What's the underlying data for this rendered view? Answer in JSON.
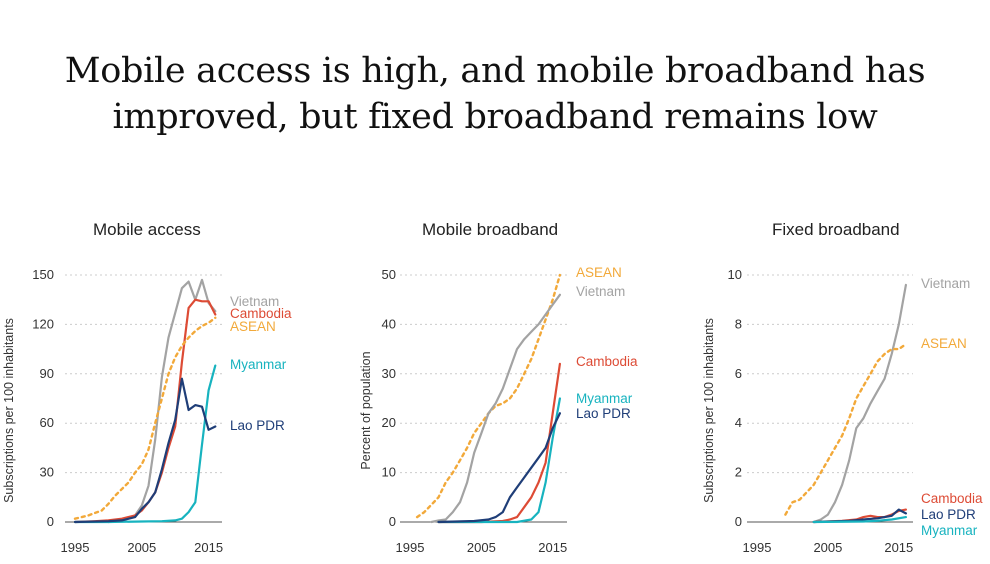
{
  "page_title": {
    "line1": "Mobile access is high, and mobile broadband has",
    "line2": "improved, but fixed broadband remains low"
  },
  "colors": {
    "Vietnam": "#a3a3a3",
    "Cambodia": "#dd4b35",
    "ASEAN": "#f2a93a",
    "Myanmar": "#17b3bf",
    "Lao PDR": "#1f3e78",
    "grid": "#cccccc",
    "axis": "#555555"
  },
  "chart_data": [
    {
      "type": "line",
      "title": "Mobile access",
      "xlabel": "",
      "ylabel": "Subscriptions per 100 inhabitants",
      "xlim": [
        1995,
        2017
      ],
      "ylim": [
        0,
        150
      ],
      "xticks": [
        1995,
        2005,
        2015
      ],
      "yticks": [
        0,
        30,
        60,
        90,
        120,
        150
      ],
      "series": [
        {
          "name": "Vietnam",
          "label": "Vietnam",
          "dashed": false,
          "points": [
            [
              2000,
              0
            ],
            [
              2002,
              1
            ],
            [
              2004,
              4
            ],
            [
              2005,
              10
            ],
            [
              2006,
              22
            ],
            [
              2007,
              50
            ],
            [
              2008,
              88
            ],
            [
              2009,
              112
            ],
            [
              2010,
              127
            ],
            [
              2011,
              142
            ],
            [
              2012,
              146
            ],
            [
              2013,
              135
            ],
            [
              2014,
              147
            ],
            [
              2015,
              133
            ],
            [
              2016,
              128
            ]
          ]
        },
        {
          "name": "Cambodia",
          "label": "Cambodia",
          "dashed": false,
          "points": [
            [
              1995,
              0
            ],
            [
              1998,
              0.5
            ],
            [
              2000,
              1
            ],
            [
              2002,
              2
            ],
            [
              2004,
              4
            ],
            [
              2005,
              7
            ],
            [
              2006,
              12
            ],
            [
              2007,
              18
            ],
            [
              2008,
              30
            ],
            [
              2009,
              45
            ],
            [
              2010,
              58
            ],
            [
              2011,
              97
            ],
            [
              2012,
              130
            ],
            [
              2013,
              135
            ],
            [
              2014,
              134
            ],
            [
              2015,
              134
            ],
            [
              2016,
              126
            ]
          ]
        },
        {
          "name": "ASEAN",
          "label": "ASEAN",
          "dashed": true,
          "points": [
            [
              1995,
              2
            ],
            [
              1997,
              4
            ],
            [
              1999,
              7
            ],
            [
              2000,
              11
            ],
            [
              2001,
              16
            ],
            [
              2002,
              20
            ],
            [
              2003,
              24
            ],
            [
              2004,
              30
            ],
            [
              2005,
              35
            ],
            [
              2006,
              44
            ],
            [
              2007,
              60
            ],
            [
              2008,
              75
            ],
            [
              2009,
              90
            ],
            [
              2010,
              100
            ],
            [
              2011,
              107
            ],
            [
              2012,
              112
            ],
            [
              2013,
              116
            ],
            [
              2014,
              119
            ],
            [
              2015,
              121
            ],
            [
              2016,
              124
            ]
          ]
        },
        {
          "name": "Myanmar",
          "label": "Myanmar",
          "dashed": false,
          "points": [
            [
              1995,
              0
            ],
            [
              2000,
              0
            ],
            [
              2005,
              0.3
            ],
            [
              2008,
              0.5
            ],
            [
              2010,
              1
            ],
            [
              2011,
              2
            ],
            [
              2012,
              6
            ],
            [
              2013,
              12
            ],
            [
              2014,
              47
            ],
            [
              2015,
              80
            ],
            [
              2016,
              95
            ]
          ]
        },
        {
          "name": "Lao PDR",
          "label": "Lao PDR",
          "dashed": false,
          "points": [
            [
              1995,
              0
            ],
            [
              2000,
              0.5
            ],
            [
              2002,
              1
            ],
            [
              2004,
              3
            ],
            [
              2005,
              8
            ],
            [
              2006,
              12
            ],
            [
              2007,
              18
            ],
            [
              2008,
              32
            ],
            [
              2009,
              48
            ],
            [
              2010,
              62
            ],
            [
              2011,
              87
            ],
            [
              2012,
              68
            ],
            [
              2013,
              71
            ],
            [
              2014,
              70
            ],
            [
              2015,
              56
            ],
            [
              2016,
              58
            ]
          ]
        }
      ]
    },
    {
      "type": "line",
      "title": "Mobile broadband",
      "xlabel": "",
      "ylabel": "Percent of population",
      "xlim": [
        1995,
        2017
      ],
      "ylim": [
        0,
        50
      ],
      "xticks": [
        1995,
        2005,
        2015
      ],
      "yticks": [
        0,
        10,
        20,
        30,
        40,
        50
      ],
      "series": [
        {
          "name": "ASEAN",
          "label": "ASEAN",
          "dashed": true,
          "points": [
            [
              1996,
              1
            ],
            [
              1997,
              2
            ],
            [
              1998,
              3.5
            ],
            [
              1999,
              5
            ],
            [
              2000,
              8
            ],
            [
              2001,
              10
            ],
            [
              2002,
              12.5
            ],
            [
              2003,
              15
            ],
            [
              2004,
              18
            ],
            [
              2005,
              20
            ],
            [
              2006,
              22
            ],
            [
              2007,
              23.5
            ],
            [
              2008,
              24
            ],
            [
              2009,
              25
            ],
            [
              2010,
              27
            ],
            [
              2011,
              30
            ],
            [
              2012,
              33
            ],
            [
              2013,
              37
            ],
            [
              2014,
              41
            ],
            [
              2015,
              45
            ],
            [
              2016,
              50
            ]
          ]
        },
        {
          "name": "Vietnam",
          "label": "Vietnam",
          "dashed": false,
          "points": [
            [
              1998,
              0
            ],
            [
              1999,
              0.3
            ],
            [
              2000,
              0.5
            ],
            [
              2001,
              2
            ],
            [
              2002,
              4
            ],
            [
              2003,
              8
            ],
            [
              2004,
              14
            ],
            [
              2005,
              18
            ],
            [
              2006,
              22
            ],
            [
              2007,
              24
            ],
            [
              2008,
              27
            ],
            [
              2009,
              31
            ],
            [
              2010,
              35
            ],
            [
              2011,
              37
            ],
            [
              2012,
              38.5
            ],
            [
              2013,
              40
            ],
            [
              2014,
              42
            ],
            [
              2015,
              44
            ],
            [
              2016,
              46
            ]
          ]
        },
        {
          "name": "Cambodia",
          "label": "Cambodia",
          "dashed": false,
          "points": [
            [
              1999,
              0
            ],
            [
              2005,
              0
            ],
            [
              2008,
              0.2
            ],
            [
              2009,
              0.5
            ],
            [
              2010,
              1
            ],
            [
              2011,
              3
            ],
            [
              2012,
              5
            ],
            [
              2013,
              8
            ],
            [
              2014,
              12
            ],
            [
              2015,
              22
            ],
            [
              2016,
              32
            ]
          ]
        },
        {
          "name": "Myanmar",
          "label": "Myanmar",
          "dashed": false,
          "points": [
            [
              1999,
              0
            ],
            [
              2010,
              0
            ],
            [
              2012,
              0.5
            ],
            [
              2013,
              2
            ],
            [
              2014,
              8
            ],
            [
              2015,
              17
            ],
            [
              2016,
              25
            ]
          ]
        },
        {
          "name": "Lao PDR",
          "label": "Lao PDR",
          "dashed": false,
          "points": [
            [
              1999,
              0
            ],
            [
              2004,
              0.2
            ],
            [
              2006,
              0.5
            ],
            [
              2007,
              1
            ],
            [
              2008,
              2
            ],
            [
              2009,
              5
            ],
            [
              2010,
              7
            ],
            [
              2011,
              9
            ],
            [
              2012,
              11
            ],
            [
              2013,
              13
            ],
            [
              2014,
              15
            ],
            [
              2015,
              19
            ],
            [
              2016,
              22
            ]
          ]
        }
      ]
    },
    {
      "type": "line",
      "title": "Fixed broadband",
      "xlabel": "",
      "ylabel": "Subscriptions per 100 inhabitants",
      "xlim": [
        1995,
        2017
      ],
      "ylim": [
        0,
        10
      ],
      "xticks": [
        1995,
        2005,
        2015
      ],
      "yticks": [
        0,
        2,
        4,
        6,
        8,
        10
      ],
      "series": [
        {
          "name": "Vietnam",
          "label": "Vietnam",
          "dashed": false,
          "points": [
            [
              2003,
              0
            ],
            [
              2004,
              0.1
            ],
            [
              2005,
              0.3
            ],
            [
              2006,
              0.8
            ],
            [
              2007,
              1.5
            ],
            [
              2008,
              2.5
            ],
            [
              2009,
              3.8
            ],
            [
              2010,
              4.2
            ],
            [
              2011,
              4.8
            ],
            [
              2012,
              5.3
            ],
            [
              2013,
              5.8
            ],
            [
              2014,
              6.8
            ],
            [
              2015,
              8
            ],
            [
              2016,
              9.6
            ]
          ]
        },
        {
          "name": "ASEAN",
          "label": "ASEAN",
          "dashed": true,
          "points": [
            [
              1999,
              0.3
            ],
            [
              2000,
              0.8
            ],
            [
              2001,
              0.9
            ],
            [
              2002,
              1.2
            ],
            [
              2003,
              1.5
            ],
            [
              2004,
              2
            ],
            [
              2005,
              2.5
            ],
            [
              2006,
              3
            ],
            [
              2007,
              3.5
            ],
            [
              2008,
              4.2
            ],
            [
              2009,
              5
            ],
            [
              2010,
              5.5
            ],
            [
              2011,
              6
            ],
            [
              2012,
              6.5
            ],
            [
              2013,
              6.8
            ],
            [
              2014,
              7
            ],
            [
              2015,
              7
            ],
            [
              2016,
              7.2
            ]
          ]
        },
        {
          "name": "Cambodia",
          "label": "Cambodia",
          "dashed": false,
          "points": [
            [
              2003,
              0
            ],
            [
              2007,
              0.05
            ],
            [
              2009,
              0.1
            ],
            [
              2010,
              0.2
            ],
            [
              2011,
              0.25
            ],
            [
              2012,
              0.2
            ],
            [
              2013,
              0.2
            ],
            [
              2014,
              0.3
            ],
            [
              2015,
              0.45
            ],
            [
              2016,
              0.5
            ]
          ]
        },
        {
          "name": "Lao PDR",
          "label": "Lao PDR",
          "dashed": false,
          "points": [
            [
              2003,
              0
            ],
            [
              2008,
              0.05
            ],
            [
              2010,
              0.1
            ],
            [
              2012,
              0.15
            ],
            [
              2013,
              0.2
            ],
            [
              2014,
              0.25
            ],
            [
              2015,
              0.5
            ],
            [
              2016,
              0.35
            ]
          ]
        },
        {
          "name": "Myanmar",
          "label": "Myanmar",
          "dashed": false,
          "points": [
            [
              2003,
              0
            ],
            [
              2010,
              0.02
            ],
            [
              2012,
              0.05
            ],
            [
              2014,
              0.1
            ],
            [
              2016,
              0.2
            ]
          ]
        }
      ]
    }
  ]
}
